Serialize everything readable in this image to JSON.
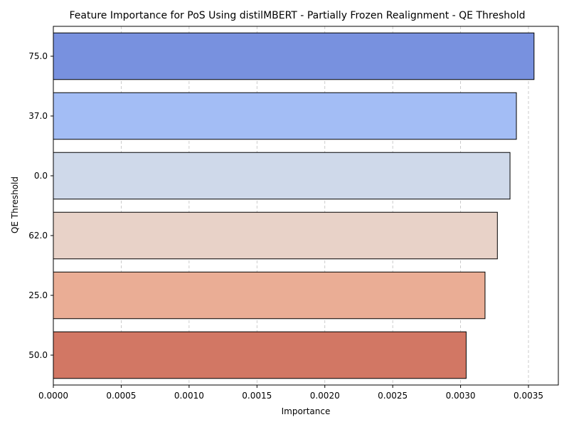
{
  "chart_data": {
    "type": "bar",
    "orientation": "horizontal",
    "title": "Feature Importance for PoS Using distilMBERT - Partially Frozen Realignment - QE Threshold",
    "xlabel": "Importance",
    "ylabel": "QE Threshold",
    "categories": [
      "75.0",
      "37.0",
      "0.0",
      "62.0",
      "25.0",
      "50.0"
    ],
    "values": [
      0.003541,
      0.003411,
      0.003364,
      0.003271,
      0.00318,
      0.003041
    ],
    "colors": [
      "#7891df",
      "#a3bdf5",
      "#cfd9ea",
      "#e8d2c8",
      "#eaad95",
      "#d27764"
    ],
    "xlim": [
      0,
      0.00372
    ],
    "xticks": [
      "0.0000",
      "0.0005",
      "0.0010",
      "0.0015",
      "0.0020",
      "0.0025",
      "0.0030",
      "0.0035"
    ],
    "xtick_values": [
      0,
      0.0005,
      0.001,
      0.0015,
      0.002,
      0.0025,
      0.003,
      0.0035
    ],
    "grid": "x"
  }
}
